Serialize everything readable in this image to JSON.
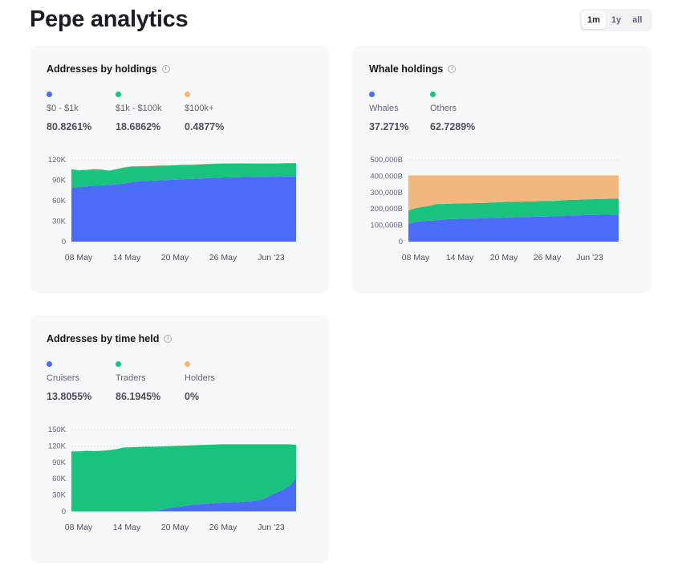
{
  "page": {
    "title": "Pepe analytics"
  },
  "range_tabs": [
    {
      "label": "1m",
      "active": true
    },
    {
      "label": "1y",
      "active": false
    },
    {
      "label": "all",
      "active": false
    }
  ],
  "cards": [
    {
      "id": "holdings",
      "title": "Addresses by holdings",
      "legend": [
        {
          "label": "$0 - $1k",
          "value": "80.8261%",
          "color": "#4a6cf7"
        },
        {
          "label": "$1k - $100k",
          "value": "18.6862%",
          "color": "#19c37d"
        },
        {
          "label": "$100k+",
          "value": "0.4877%",
          "color": "#f2b67e"
        }
      ]
    },
    {
      "id": "whale",
      "title": "Whale holdings",
      "legend": [
        {
          "label": "Whales",
          "value": "37.271%",
          "color": "#4a6cf7"
        },
        {
          "label": "Others",
          "value": "62.7289%",
          "color": "#19c37d"
        }
      ]
    },
    {
      "id": "timeheld",
      "title": "Addresses by time held",
      "legend": [
        {
          "label": "Cruisers",
          "value": "13.8055%",
          "color": "#4a6cf7"
        },
        {
          "label": "Traders",
          "value": "86.1945%",
          "color": "#19c37d"
        },
        {
          "label": "Holders",
          "value": "0%",
          "color": "#f2b67e"
        }
      ]
    }
  ],
  "chart_data": [
    {
      "type": "area",
      "stacked": true,
      "x": [
        "May 3",
        "May 4",
        "May 5",
        "May 6",
        "May 7",
        "May 8",
        "May 9",
        "May 10",
        "May 11",
        "May 12",
        "May 13",
        "May 14",
        "May 15",
        "May 16",
        "May 17",
        "May 18",
        "May 19",
        "May 20",
        "May 21",
        "May 22",
        "May 23",
        "May 24",
        "May 25",
        "May 26",
        "May 27",
        "May 28",
        "May 29",
        "May 30",
        "May 31",
        "Jun 1",
        "Jun 2"
      ],
      "xticks": [
        "08 May",
        "14 May",
        "20 May",
        "26 May",
        "Jun '23"
      ],
      "yticks": [
        "0",
        "30K",
        "60K",
        "90K",
        "120K"
      ],
      "ylim": [
        0,
        120000
      ],
      "grid": true,
      "series": [
        {
          "name": "$0 - $1k",
          "color": "#4a6cf7",
          "values": [
            79000,
            80000,
            81000,
            82000,
            82500,
            83000,
            84000,
            85000,
            87000,
            88500,
            89000,
            89500,
            90000,
            90500,
            91000,
            91500,
            92000,
            92500,
            93000,
            93500,
            94000,
            94200,
            94500,
            94700,
            94800,
            95000,
            95100,
            95200,
            95300,
            95400,
            95500
          ]
        },
        {
          "name": "$1k - $100k",
          "color": "#19c37d",
          "values": [
            27000,
            24500,
            24000,
            24000,
            23000,
            21000,
            22000,
            23500,
            23000,
            22000,
            21500,
            21500,
            21500,
            21000,
            21000,
            21000,
            20500,
            20500,
            20500,
            20500,
            20500,
            20300,
            20100,
            19900,
            19600,
            19400,
            19300,
            19200,
            19300,
            19400,
            19500
          ]
        },
        {
          "name": "$100k+",
          "color": "#f2b67e",
          "values": [
            500,
            500,
            500,
            500,
            500,
            500,
            500,
            500,
            500,
            500,
            500,
            500,
            500,
            500,
            500,
            500,
            500,
            500,
            500,
            500,
            500,
            500,
            500,
            500,
            500,
            500,
            500,
            500,
            500,
            500,
            500
          ]
        }
      ]
    },
    {
      "type": "area",
      "stacked": true,
      "x": [
        "May 3",
        "May 4",
        "May 5",
        "May 6",
        "May 7",
        "May 8",
        "May 9",
        "May 10",
        "May 11",
        "May 12",
        "May 13",
        "May 14",
        "May 15",
        "May 16",
        "May 17",
        "May 18",
        "May 19",
        "May 20",
        "May 21",
        "May 22",
        "May 23",
        "May 24",
        "May 25",
        "May 26",
        "May 27",
        "May 28",
        "May 29",
        "May 30",
        "May 31",
        "Jun 1",
        "Jun 2"
      ],
      "xticks": [
        "08 May",
        "14 May",
        "20 May",
        "26 May",
        "Jun '23"
      ],
      "yticks": [
        "0",
        "100,000B",
        "200,000B",
        "300,000B",
        "400,000B",
        "500,000B"
      ],
      "ylim": [
        0,
        500000
      ],
      "grid": true,
      "series": [
        {
          "name": "Whales",
          "color": "#4a6cf7",
          "values": [
            110000,
            120000,
            125000,
            128000,
            130000,
            135000,
            138000,
            139000,
            140000,
            141000,
            142000,
            143000,
            145000,
            146000,
            148000,
            149000,
            150000,
            151000,
            152000,
            153000,
            154000,
            155000,
            158000,
            160000,
            161000,
            162000,
            163000,
            163500,
            164000,
            164500,
            165000
          ]
        },
        {
          "name": "Others",
          "color": "#19c37d",
          "values": [
            80000,
            85000,
            87000,
            90000,
            100000,
            95000,
            94000,
            94000,
            94000,
            94000,
            94000,
            94000,
            94000,
            94500,
            94500,
            94500,
            94500,
            94500,
            94500,
            94500,
            94500,
            94500,
            95000,
            95000,
            95500,
            96000,
            96500,
            97000,
            97500,
            98000,
            99000
          ]
        },
        {
          "name": "",
          "color": "#f2b67e",
          "values": [
            215000,
            200000,
            193000,
            187000,
            175000,
            175000,
            173000,
            172000,
            171000,
            170000,
            169000,
            168000,
            166000,
            164500,
            162500,
            161500,
            160500,
            159500,
            158500,
            157500,
            156500,
            155500,
            152000,
            150000,
            148500,
            147000,
            145500,
            144500,
            143500,
            142500,
            141000
          ]
        }
      ]
    },
    {
      "type": "area",
      "stacked": true,
      "x": [
        "May 3",
        "May 4",
        "May 5",
        "May 6",
        "May 7",
        "May 8",
        "May 9",
        "May 10",
        "May 11",
        "May 12",
        "May 13",
        "May 14",
        "May 15",
        "May 16",
        "May 17",
        "May 18",
        "May 19",
        "May 20",
        "May 21",
        "May 22",
        "May 23",
        "May 24",
        "May 25",
        "May 26",
        "May 27",
        "May 28",
        "May 29",
        "May 30",
        "May 31",
        "Jun 1",
        "Jun 2"
      ],
      "xticks": [
        "08 May",
        "14 May",
        "20 May",
        "26 May",
        "Jun '23"
      ],
      "yticks": [
        "0",
        "30K",
        "60K",
        "90K",
        "120K",
        "150K"
      ],
      "ylim": [
        0,
        150000
      ],
      "grid": true,
      "series": [
        {
          "name": "Cruisers",
          "color": "#4a6cf7",
          "values": [
            0,
            0,
            0,
            0,
            0,
            0,
            0,
            0,
            0,
            0,
            0,
            500,
            3000,
            6000,
            8000,
            10000,
            12000,
            13000,
            14000,
            15000,
            16000,
            16500,
            17000,
            18000,
            19000,
            20000,
            25000,
            32000,
            38000,
            45000,
            60000
          ]
        },
        {
          "name": "Traders",
          "color": "#19c37d",
          "values": [
            110000,
            110000,
            111000,
            110500,
            111000,
            112000,
            114000,
            117000,
            117500,
            118000,
            118500,
            118000,
            116000,
            113500,
            112000,
            110500,
            109000,
            108500,
            108000,
            107500,
            107000,
            106500,
            106000,
            105000,
            104000,
            103000,
            98000,
            91000,
            85000,
            78000,
            62000
          ]
        },
        {
          "name": "Holders",
          "color": "#f2b67e",
          "values": [
            0,
            0,
            0,
            0,
            0,
            0,
            0,
            0,
            0,
            0,
            0,
            0,
            0,
            0,
            0,
            0,
            0,
            0,
            0,
            0,
            0,
            0,
            0,
            0,
            0,
            0,
            0,
            0,
            0,
            0,
            0
          ]
        }
      ]
    }
  ]
}
